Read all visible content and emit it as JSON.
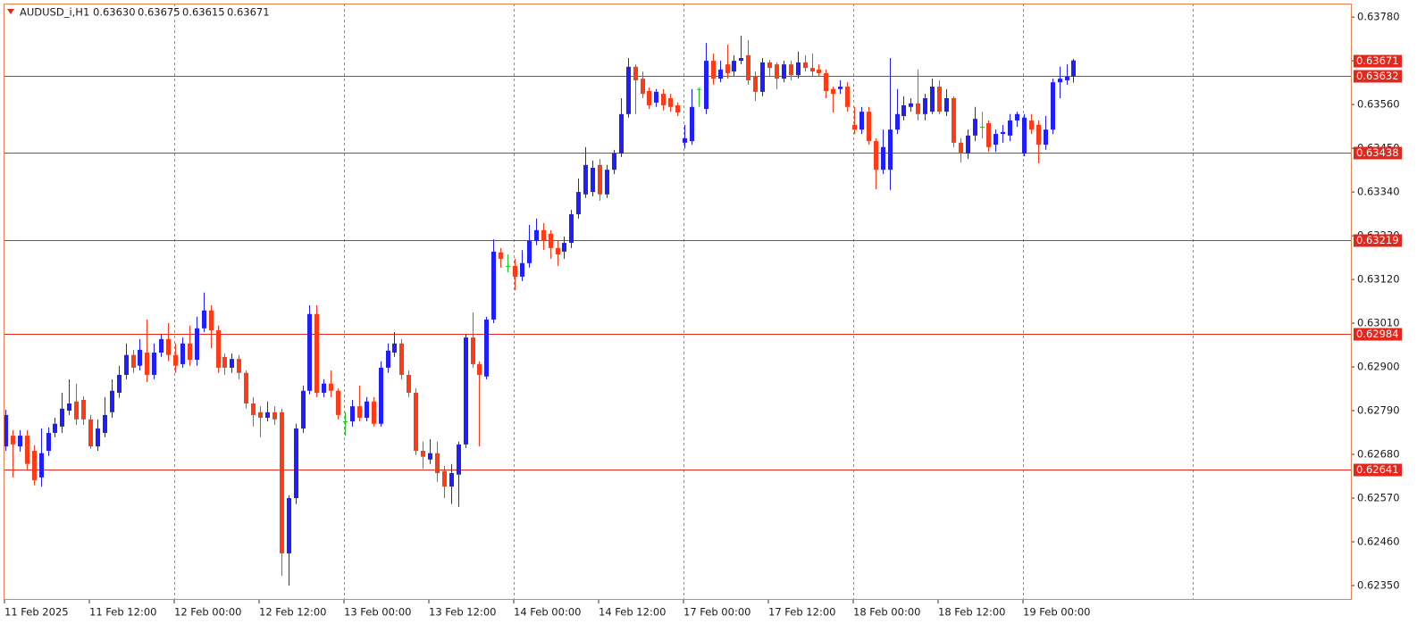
{
  "header": {
    "symbol": "AUDUSD_i,H1",
    "ohlc": [
      "0.63630",
      "0.63675",
      "0.63615",
      "0.63671"
    ]
  },
  "chart_data": {
    "type": "candlestick",
    "up_color": "#1e1eff",
    "down_color": "#ff3a14",
    "doji_color": "#1ec81e",
    "level_color": "#e3271c",
    "grid_color": "#ec6a3c",
    "grid": true,
    "ylim": [
      0.62314,
      0.63814
    ],
    "yticks": [
      {
        "value": 0.6378,
        "label": "0.63780"
      },
      {
        "value": 0.6367,
        "label": "0.63670"
      },
      {
        "value": 0.6356,
        "label": "0.63560"
      },
      {
        "value": 0.6345,
        "label": "0.63450"
      },
      {
        "value": 0.6334,
        "label": "0.63340"
      },
      {
        "value": 0.6323,
        "label": "0.63230"
      },
      {
        "value": 0.6312,
        "label": "0.63120"
      },
      {
        "value": 0.6301,
        "label": "0.63010"
      },
      {
        "value": 0.629,
        "label": "0.62900"
      },
      {
        "value": 0.6279,
        "label": "0.62790"
      },
      {
        "value": 0.6268,
        "label": "0.62680"
      },
      {
        "value": 0.6257,
        "label": "0.62570"
      },
      {
        "value": 0.6246,
        "label": "0.62460"
      },
      {
        "value": 0.6235,
        "label": "0.62350"
      }
    ],
    "levels": [
      0.63632,
      0.63438,
      0.63219,
      0.62984,
      0.62641
    ],
    "categories": [
      "11 Feb 2025",
      null,
      null,
      null,
      null,
      null,
      null,
      null,
      null,
      null,
      null,
      null,
      "11 Feb 12:00",
      null,
      null,
      null,
      null,
      null,
      null,
      null,
      null,
      null,
      null,
      null,
      "12 Feb 00:00",
      null,
      null,
      null,
      null,
      null,
      null,
      null,
      null,
      null,
      null,
      null,
      "12 Feb 12:00",
      null,
      null,
      null,
      null,
      null,
      null,
      null,
      null,
      null,
      null,
      null,
      "13 Feb 00:00",
      null,
      null,
      null,
      null,
      null,
      null,
      null,
      null,
      null,
      null,
      null,
      "13 Feb 12:00",
      null,
      null,
      null,
      null,
      null,
      null,
      null,
      null,
      null,
      null,
      null,
      "14 Feb 00:00",
      null,
      null,
      null,
      null,
      null,
      null,
      null,
      null,
      null,
      null,
      null,
      "14 Feb 12:00",
      null,
      null,
      null,
      null,
      null,
      null,
      null,
      null,
      null,
      null,
      null,
      "17 Feb 00:00",
      null,
      null,
      null,
      null,
      null,
      null,
      null,
      null,
      null,
      null,
      null,
      "17 Feb 12:00",
      null,
      null,
      null,
      null,
      null,
      null,
      null,
      null,
      null,
      null,
      null,
      "18 Feb 00:00",
      null,
      null,
      null,
      null,
      null,
      null,
      null,
      null,
      null,
      null,
      null,
      "18 Feb 12:00",
      null,
      null,
      null,
      null,
      null,
      null,
      null,
      null,
      null,
      null,
      null,
      "19 Feb 00:00",
      null,
      null,
      null,
      null,
      null,
      null,
      null
    ],
    "open": [
      0.627,
      0.62727,
      0.627,
      0.62727,
      0.62689,
      0.62622,
      0.62689,
      0.62734,
      0.6275,
      0.6279,
      0.62813,
      0.62817,
      0.62768,
      0.627,
      0.62734,
      0.62786,
      0.62835,
      0.6288,
      0.6293,
      0.62903,
      0.62936,
      0.6288,
      0.62936,
      0.6297,
      0.6293,
      0.62907,
      0.62959,
      0.62918,
      0.62997,
      0.63042,
      0.62992,
      0.62925,
      0.62898,
      0.6292,
      0.62885,
      0.62808,
      0.62786,
      0.62772,
      0.62786,
      0.62786,
      0.62431,
      0.6257,
      0.62745,
      0.6284,
      0.63033,
      0.62835,
      0.62858,
      0.6284,
      0.62763,
      0.62763,
      0.62801,
      0.62772,
      0.62813,
      0.62757,
      0.62898,
      0.62936,
      0.62959,
      0.6288,
      0.62835,
      0.62689,
      0.62667,
      0.62683,
      0.62638,
      0.62599,
      0.62629,
      0.62705,
      0.62974,
      0.62907,
      0.62876,
      0.63019,
      0.63188,
      0.63154,
      0.63154,
      0.63127,
      0.63161,
      0.63217,
      0.63244,
      0.63235,
      0.63199,
      0.6319,
      0.63212,
      0.63284,
      0.63334,
      0.6334,
      0.63408,
      0.63334,
      0.63396,
      0.63437,
      0.63536,
      0.63655,
      0.63625,
      0.63594,
      0.63565,
      0.63587,
      0.63576,
      0.63558,
      0.63464,
      0.63468,
      0.63599,
      0.63549,
      0.6367,
      0.63625,
      0.63661,
      0.63643,
      0.6367,
      0.63684,
      0.63632,
      0.63592,
      0.63666,
      0.63661,
      0.63625,
      0.63661,
      0.63634,
      0.63666,
      0.63652,
      0.63648,
      0.63639,
      0.63599,
      0.63599,
      0.63605,
      0.63509,
      0.63497,
      0.63542,
      0.63468,
      0.63396,
      0.63396,
      0.63497,
      0.63531,
      0.63554,
      0.63563,
      0.63536,
      0.63542,
      0.63605,
      0.63542,
      0.63576,
      0.63464,
      0.63437,
      0.63482,
      0.63504,
      0.63513,
      0.63459,
      0.63486,
      0.63482,
      0.6352,
      0.63437,
      0.6352,
      0.63509,
      0.63459,
      0.63497,
      0.63616,
      0.63621,
      0.6363
    ],
    "high": [
      0.62792,
      0.62741,
      0.62741,
      0.62741,
      0.62703,
      0.62745,
      0.62748,
      0.62772,
      0.62835,
      0.62869,
      0.62858,
      0.62826,
      0.62779,
      0.62768,
      0.62824,
      0.62869,
      0.62903,
      0.62959,
      0.62943,
      0.6297,
      0.63019,
      0.62959,
      0.62981,
      0.6301,
      0.62959,
      0.62974,
      0.63004,
      0.63026,
      0.63087,
      0.63055,
      0.63004,
      0.62934,
      0.62934,
      0.6293,
      0.62891,
      0.62824,
      0.62801,
      0.62813,
      0.62801,
      0.62795,
      0.62577,
      0.62757,
      0.62853,
      0.63055,
      0.63055,
      0.62869,
      0.62891,
      0.62846,
      0.62786,
      0.62817,
      0.62853,
      0.62824,
      0.62824,
      0.62914,
      0.62959,
      0.62988,
      0.6297,
      0.62891,
      0.62846,
      0.62712,
      0.62718,
      0.62712,
      0.62651,
      0.62656,
      0.62712,
      0.62981,
      0.63037,
      0.62914,
      0.63026,
      0.63221,
      0.63199,
      0.63183,
      0.63172,
      0.63194,
      0.63257,
      0.63273,
      0.63262,
      0.63244,
      0.63217,
      0.63228,
      0.63295,
      0.63374,
      0.63453,
      0.63419,
      0.63423,
      0.63408,
      0.63446,
      0.63576,
      0.63677,
      0.63661,
      0.63643,
      0.63603,
      0.63599,
      0.63599,
      0.63587,
      0.63565,
      0.63509,
      0.63599,
      0.63603,
      0.63715,
      0.63688,
      0.6367,
      0.63711,
      0.63684,
      0.63733,
      0.63722,
      0.63643,
      0.63677,
      0.63672,
      0.63666,
      0.6367,
      0.6367,
      0.63693,
      0.63684,
      0.63688,
      0.63661,
      0.63648,
      0.63605,
      0.63621,
      0.63616,
      0.63554,
      0.63554,
      0.63554,
      0.63475,
      0.63497,
      0.63677,
      0.63599,
      0.63581,
      0.63576,
      0.63648,
      0.63587,
      0.63625,
      0.63621,
      0.63599,
      0.63581,
      0.63475,
      0.63497,
      0.63554,
      0.63542,
      0.6352,
      0.63497,
      0.63509,
      0.63536,
      0.63542,
      0.63536,
      0.63536,
      0.6352,
      0.63531,
      0.63625,
      0.63655,
      0.63661,
      0.63675
    ],
    "low": [
      0.62689,
      0.62622,
      0.62687,
      0.62642,
      0.62602,
      0.62599,
      0.62676,
      0.62723,
      0.62734,
      0.62779,
      0.62754,
      0.62754,
      0.62694,
      0.62689,
      0.62723,
      0.62772,
      0.62822,
      0.62869,
      0.62885,
      0.62891,
      0.62862,
      0.62869,
      0.62925,
      0.62914,
      0.62885,
      0.62898,
      0.62903,
      0.62903,
      0.62988,
      0.62947,
      0.62885,
      0.6288,
      0.62885,
      0.62869,
      0.62795,
      0.6275,
      0.62723,
      0.62763,
      0.62754,
      0.62375,
      0.6235,
      0.62555,
      0.62734,
      0.62831,
      0.62824,
      0.62824,
      0.62824,
      0.62768,
      0.62727,
      0.6275,
      0.62763,
      0.62763,
      0.6275,
      0.6275,
      0.62885,
      0.62925,
      0.62869,
      0.62824,
      0.62678,
      0.62644,
      0.62656,
      0.62611,
      0.6257,
      0.62555,
      0.62548,
      0.62696,
      0.62898,
      0.627,
      0.62869,
      0.6301,
      0.6315,
      0.63138,
      0.63093,
      0.63116,
      0.6315,
      0.63206,
      0.63194,
      0.63172,
      0.63154,
      0.63172,
      0.63199,
      0.63273,
      0.63325,
      0.63329,
      0.63318,
      0.63325,
      0.63385,
      0.63428,
      0.63527,
      0.63536,
      0.63576,
      0.63549,
      0.63554,
      0.63545,
      0.63542,
      0.63531,
      0.6345,
      0.63459,
      0.63554,
      0.63536,
      0.6361,
      0.63616,
      0.63625,
      0.63632,
      0.63661,
      0.6361,
      0.63569,
      0.63581,
      0.63632,
      0.63599,
      0.63616,
      0.63621,
      0.63625,
      0.63643,
      0.63632,
      0.63632,
      0.63576,
      0.6354,
      0.63587,
      0.63542,
      0.63486,
      0.63486,
      0.63459,
      0.63347,
      0.63385,
      0.63345,
      0.63486,
      0.6352,
      0.63542,
      0.6352,
      0.6352,
      0.63536,
      0.63536,
      0.63531,
      0.63453,
      0.63414,
      0.63423,
      0.63468,
      0.63475,
      0.63441,
      0.63441,
      0.63464,
      0.63468,
      0.63504,
      0.6343,
      0.63486,
      0.63412,
      0.63446,
      0.63486,
      0.63576,
      0.6361,
      0.63615
    ],
    "close": [
      0.62779,
      0.62705,
      0.62727,
      0.62656,
      0.62615,
      0.62683,
      0.62734,
      0.62757,
      0.62795,
      0.62808,
      0.62768,
      0.62768,
      0.627,
      0.62745,
      0.62779,
      0.6284,
      0.6288,
      0.6293,
      0.62898,
      0.62943,
      0.6288,
      0.62936,
      0.6297,
      0.6293,
      0.62903,
      0.62959,
      0.62918,
      0.62997,
      0.63042,
      0.62992,
      0.62898,
      0.62898,
      0.6292,
      0.62885,
      0.62808,
      0.62779,
      0.62772,
      0.62786,
      0.62768,
      0.62431,
      0.6257,
      0.62745,
      0.6284,
      0.63033,
      0.62835,
      0.62858,
      0.6284,
      0.62779,
      0.62763,
      0.62801,
      0.62772,
      0.62813,
      0.62757,
      0.62898,
      0.62941,
      0.62959,
      0.6288,
      0.62835,
      0.62689,
      0.62674,
      0.62683,
      0.62633,
      0.62599,
      0.62633,
      0.62705,
      0.62974,
      0.62907,
      0.6288,
      0.63019,
      0.6319,
      0.63172,
      0.63154,
      0.63127,
      0.63161,
      0.63217,
      0.63244,
      0.63217,
      0.63199,
      0.63183,
      0.63212,
      0.63284,
      0.6334,
      0.63408,
      0.63401,
      0.63334,
      0.63396,
      0.63437,
      0.63536,
      0.63655,
      0.63621,
      0.63587,
      0.63558,
      0.63592,
      0.63558,
      0.63554,
      0.6354,
      0.63475,
      0.63554,
      0.63599,
      0.6367,
      0.63625,
      0.63648,
      0.63639,
      0.6367,
      0.63677,
      0.63621,
      0.63592,
      0.63666,
      0.63652,
      0.63625,
      0.63661,
      0.63634,
      0.63666,
      0.63652,
      0.63643,
      0.63639,
      0.63594,
      0.63587,
      0.63605,
      0.63554,
      0.63497,
      0.63542,
      0.63468,
      0.63396,
      0.63453,
      0.63497,
      0.63536,
      0.63558,
      0.63563,
      0.63536,
      0.63576,
      0.63605,
      0.63542,
      0.63576,
      0.63464,
      0.63437,
      0.63482,
      0.63524,
      0.63504,
      0.63453,
      0.63486,
      0.63491,
      0.6352,
      0.63536,
      0.63527,
      0.63497,
      0.63459,
      0.63497,
      0.63616,
      0.63625,
      0.6363,
      0.63671
    ]
  }
}
